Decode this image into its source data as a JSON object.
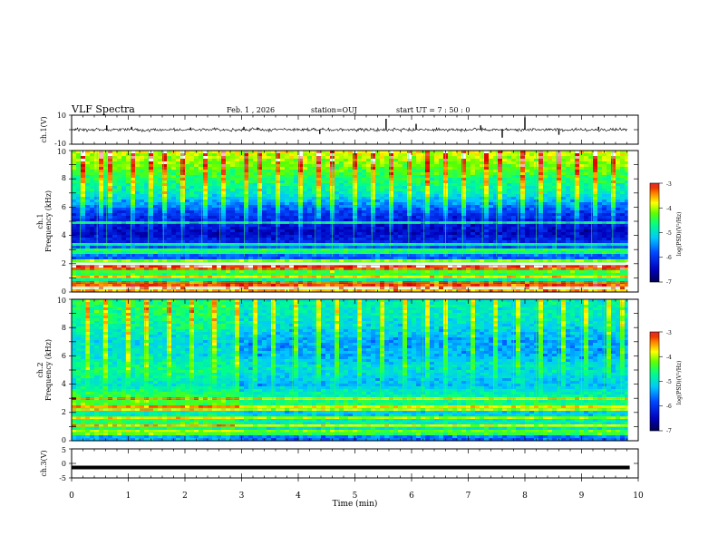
{
  "header": {
    "title": "VLF Spectra",
    "date": "Feb. 1 , 2026",
    "station": "station=OUJ",
    "start_ut": "start UT = 7 : 50 : 0"
  },
  "chart_data": [
    {
      "type": "line",
      "panel": "ch1-waveform",
      "ylabel": "ch.1(V)",
      "ylim": [
        -10,
        10
      ],
      "yticks": [
        "10",
        "-10"
      ],
      "xlim": [
        0,
        10
      ],
      "series_color": "#000000",
      "baseline": 0,
      "x": [
        0.62,
        1.06,
        2.1,
        3.04,
        3.28,
        4.38,
        5.55,
        6.08,
        7.22,
        7.6,
        8.0,
        8.6,
        9.3
      ],
      "y": [
        3.0,
        2.0,
        1.5,
        2.0,
        1.5,
        -3.0,
        7.5,
        4.0,
        3.0,
        -5.5,
        8.5,
        -3.5,
        2.0
      ]
    },
    {
      "type": "heatmap",
      "panel": "ch1-spectrogram",
      "ylabel": "ch.1",
      "ylabel2": "Frequency (kHz)",
      "ylim": [
        0,
        10
      ],
      "yticks": [
        "0",
        "2",
        "4",
        "6",
        "8",
        "10"
      ],
      "xlim": [
        0,
        10
      ],
      "colorbar": {
        "label": "log(PSD)(V²/Hz)",
        "range": [
          -7,
          -3
        ],
        "ticks": [
          "-3",
          "-4",
          "-5",
          "-6",
          "-7"
        ]
      },
      "freq_profile": [
        [
          0.0,
          -3.5
        ],
        [
          0.2,
          -4.0
        ],
        [
          0.5,
          -3.4
        ],
        [
          0.8,
          -5.0
        ],
        [
          1.2,
          -4.6
        ],
        [
          1.6,
          -4.4
        ],
        [
          1.9,
          -4.0
        ],
        [
          2.4,
          -5.8
        ],
        [
          3.0,
          -5.6
        ],
        [
          3.5,
          -6.1
        ],
        [
          4.2,
          -6.5
        ],
        [
          4.8,
          -6.3
        ],
        [
          5.5,
          -6.1
        ],
        [
          6.0,
          -5.7
        ],
        [
          7.0,
          -5.0
        ],
        [
          8.0,
          -4.7
        ],
        [
          9.0,
          -4.3
        ],
        [
          10.0,
          -4.0
        ]
      ],
      "time_profile": [
        [
          0,
          0.0
        ],
        [
          10,
          0.0
        ]
      ],
      "lines": [
        0.3,
        0.7,
        1.0,
        1.6,
        1.9,
        2.1,
        2.9,
        3.4,
        4.9
      ],
      "spikes_x": [
        0.15,
        0.45,
        0.62,
        1.05,
        1.35,
        1.62,
        1.95,
        2.3,
        2.62,
        3.05,
        3.3,
        3.62,
        4.02,
        4.3,
        4.6,
        4.98,
        5.3,
        5.62,
        5.95,
        6.22,
        6.6,
        6.9,
        7.25,
        7.5,
        7.88,
        8.2,
        8.55,
        8.88,
        9.18,
        9.55
      ]
    },
    {
      "type": "heatmap",
      "panel": "ch2-spectrogram",
      "ylabel": "ch.2",
      "ylabel2": "Frequency (kHz)",
      "ylim": [
        0,
        10
      ],
      "yticks": [
        "0",
        "2",
        "4",
        "6",
        "8",
        "10"
      ],
      "xlim": [
        0,
        10
      ],
      "colorbar": {
        "label": "log(PSD)(V²/Hz)",
        "range": [
          -7,
          -3
        ],
        "ticks": [
          "-3",
          "-4",
          "-5",
          "-6",
          "-7"
        ]
      },
      "freq_profile": [
        [
          0.0,
          -5.8
        ],
        [
          0.5,
          -5.5
        ],
        [
          1.0,
          -4.9
        ],
        [
          1.5,
          -5.0
        ],
        [
          2.0,
          -5.3
        ],
        [
          2.5,
          -4.7
        ],
        [
          3.0,
          -4.8
        ],
        [
          3.5,
          -5.0
        ],
        [
          4.0,
          -5.4
        ],
        [
          4.5,
          -5.2
        ],
        [
          5.0,
          -5.1
        ],
        [
          5.5,
          -5.2
        ],
        [
          6.0,
          -5.4
        ],
        [
          7.0,
          -5.5
        ],
        [
          8.0,
          -5.2
        ],
        [
          9.0,
          -5.0
        ],
        [
          10.0,
          -5.0
        ]
      ],
      "time_profile": [
        [
          0,
          0.3
        ],
        [
          2.9,
          0.3
        ],
        [
          3.0,
          0.0
        ],
        [
          10,
          0.0
        ]
      ],
      "lines": [
        0.6,
        1.0,
        1.7,
        2.3,
        3.0
      ],
      "spikes_x": [
        0.25,
        0.55,
        0.95,
        1.3,
        1.7,
        2.1,
        2.45,
        2.85,
        3.2,
        3.55,
        3.9,
        4.3,
        4.65,
        5.05,
        5.45,
        5.85,
        6.2,
        6.6,
        7.05,
        7.45,
        7.8,
        8.2,
        8.6,
        9.0,
        9.4,
        9.7
      ]
    },
    {
      "type": "line",
      "panel": "ch3-waveform",
      "ylabel": "ch.3(V)",
      "ylim": [
        -5,
        5
      ],
      "yticks": [
        "5",
        "0",
        "-5"
      ],
      "xlim": [
        0,
        10
      ],
      "xticks": [
        "0",
        "1",
        "2",
        "3",
        "4",
        "5",
        "6",
        "7",
        "8",
        "9",
        "10"
      ],
      "xlabel": "Time (min)",
      "x": [
        0,
        9.85
      ],
      "y": [
        -1.4,
        -1.4
      ]
    }
  ]
}
